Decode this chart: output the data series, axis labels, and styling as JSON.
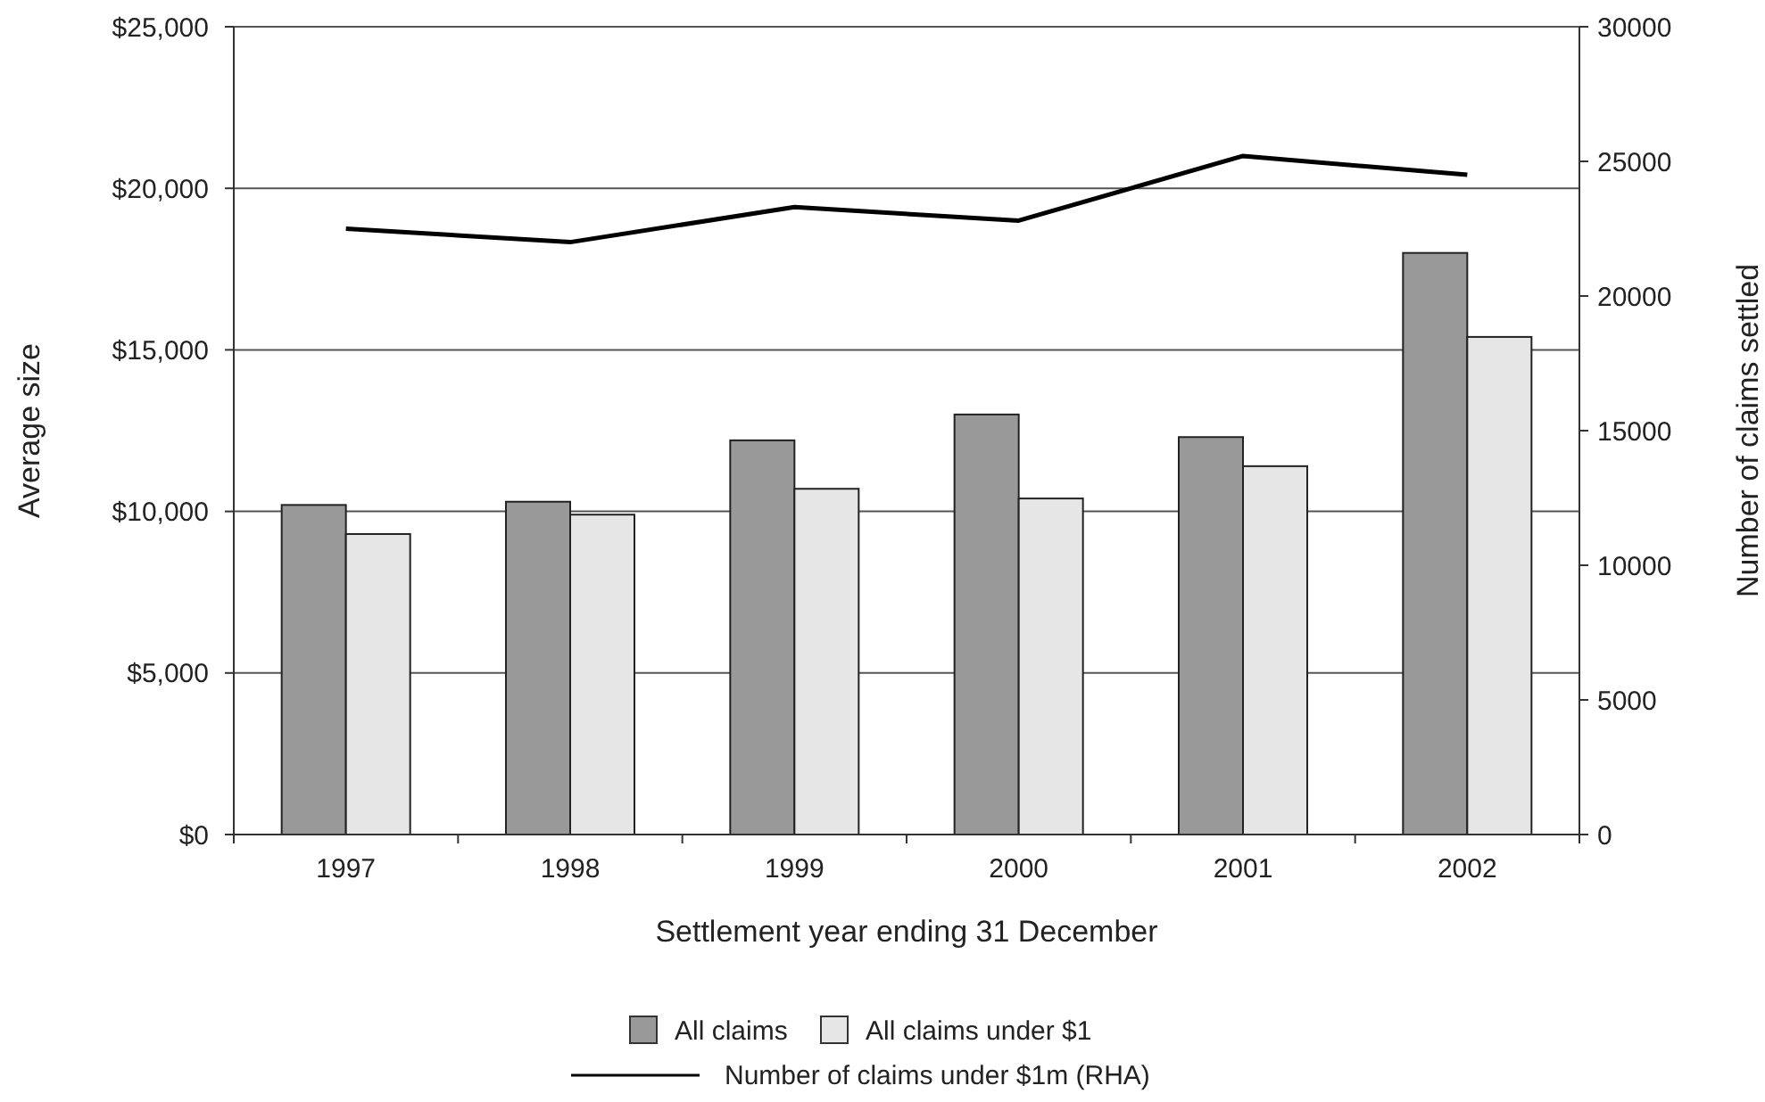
{
  "chart_data": {
    "type": "bar",
    "xlabel": "Settlement year ending 31 December",
    "ylabel": "Average size",
    "y2label": "Number of claims settled",
    "categories": [
      "1997",
      "1998",
      "1999",
      "2000",
      "2001",
      "2002"
    ],
    "series": [
      {
        "name": "All claims",
        "color": "#999999",
        "values": [
          10200,
          10300,
          12200,
          13000,
          12300,
          18000
        ]
      },
      {
        "name": "All claims under $1",
        "color": "#e6e6e6",
        "values": [
          9300,
          9900,
          10700,
          10400,
          11400,
          15400
        ]
      },
      {
        "name": "Number of claims under $1m (RHA)",
        "type": "line",
        "axis": "y2",
        "color": "#000000",
        "values": [
          22500,
          22000,
          23300,
          22800,
          25200,
          24500
        ]
      }
    ],
    "ylim": [
      0,
      25000
    ],
    "yticks": [
      {
        "value": 0,
        "label": "$0"
      },
      {
        "value": 5000,
        "label": "$5,000"
      },
      {
        "value": 10000,
        "label": "$10,000"
      },
      {
        "value": 15000,
        "label": "$15,000"
      },
      {
        "value": 20000,
        "label": "$20,000"
      },
      {
        "value": 25000,
        "label": "$25,000"
      }
    ],
    "y2lim": [
      0,
      30000
    ],
    "y2ticks": [
      0,
      5000,
      10000,
      15000,
      20000,
      25000,
      30000
    ],
    "grid": "y",
    "legend": "bottom",
    "marker": "none",
    "line_style": "solid"
  }
}
